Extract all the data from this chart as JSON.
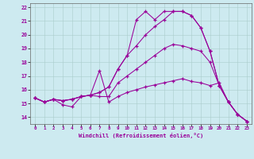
{
  "xlabel": "Windchill (Refroidissement éolien,°C)",
  "background_color": "#cdeaf0",
  "line_color": "#990099",
  "xlim": [
    -0.5,
    23.5
  ],
  "ylim": [
    13.5,
    22.3
  ],
  "xticks": [
    0,
    1,
    2,
    3,
    4,
    5,
    6,
    7,
    8,
    9,
    10,
    11,
    12,
    13,
    14,
    15,
    16,
    17,
    18,
    19,
    20,
    21,
    22,
    23
  ],
  "yticks": [
    14,
    15,
    16,
    17,
    18,
    19,
    20,
    21,
    22
  ],
  "line1_x": [
    0,
    1,
    2,
    3,
    4,
    5,
    6,
    7,
    8,
    9,
    10,
    11,
    12,
    13,
    14,
    15,
    16,
    17,
    18,
    19,
    20,
    21,
    22,
    23
  ],
  "line1_y": [
    15.4,
    15.1,
    15.3,
    14.9,
    14.75,
    15.5,
    15.6,
    17.4,
    15.1,
    15.5,
    15.8,
    16.0,
    16.2,
    16.35,
    16.5,
    16.65,
    16.8,
    16.6,
    16.5,
    16.3,
    16.5,
    15.1,
    14.2,
    13.7
  ],
  "line2_x": [
    0,
    1,
    2,
    3,
    4,
    5,
    6,
    7,
    8,
    9,
    10,
    11,
    12,
    13,
    14,
    15,
    16,
    17,
    18,
    19,
    20,
    21,
    22,
    23
  ],
  "line2_y": [
    15.4,
    15.1,
    15.3,
    15.2,
    15.3,
    15.5,
    15.6,
    15.5,
    15.5,
    16.5,
    17.0,
    17.5,
    18.0,
    18.5,
    19.0,
    19.3,
    19.2,
    19.0,
    18.8,
    18.0,
    16.3,
    15.1,
    14.2,
    13.7
  ],
  "line3_x": [
    0,
    1,
    2,
    3,
    4,
    5,
    6,
    7,
    8,
    9,
    10,
    11,
    12,
    13,
    14,
    15,
    16,
    17,
    18,
    19,
    20,
    21,
    22,
    23
  ],
  "line3_y": [
    15.4,
    15.1,
    15.3,
    15.2,
    15.3,
    15.5,
    15.6,
    15.8,
    16.2,
    17.5,
    18.5,
    19.2,
    20.0,
    20.6,
    21.1,
    21.7,
    21.7,
    21.4,
    20.5,
    18.8,
    16.3,
    15.1,
    14.2,
    13.7
  ],
  "line4_x": [
    0,
    1,
    2,
    3,
    4,
    5,
    6,
    7,
    8,
    9,
    10,
    11,
    12,
    13,
    14,
    15,
    16,
    17,
    18,
    19,
    20,
    21,
    22,
    23
  ],
  "line4_y": [
    15.4,
    15.1,
    15.3,
    15.2,
    15.3,
    15.5,
    15.6,
    15.8,
    16.2,
    17.5,
    18.5,
    21.1,
    21.7,
    21.1,
    21.7,
    21.7,
    21.7,
    21.4,
    20.5,
    18.8,
    16.3,
    15.1,
    14.2,
    13.7
  ]
}
